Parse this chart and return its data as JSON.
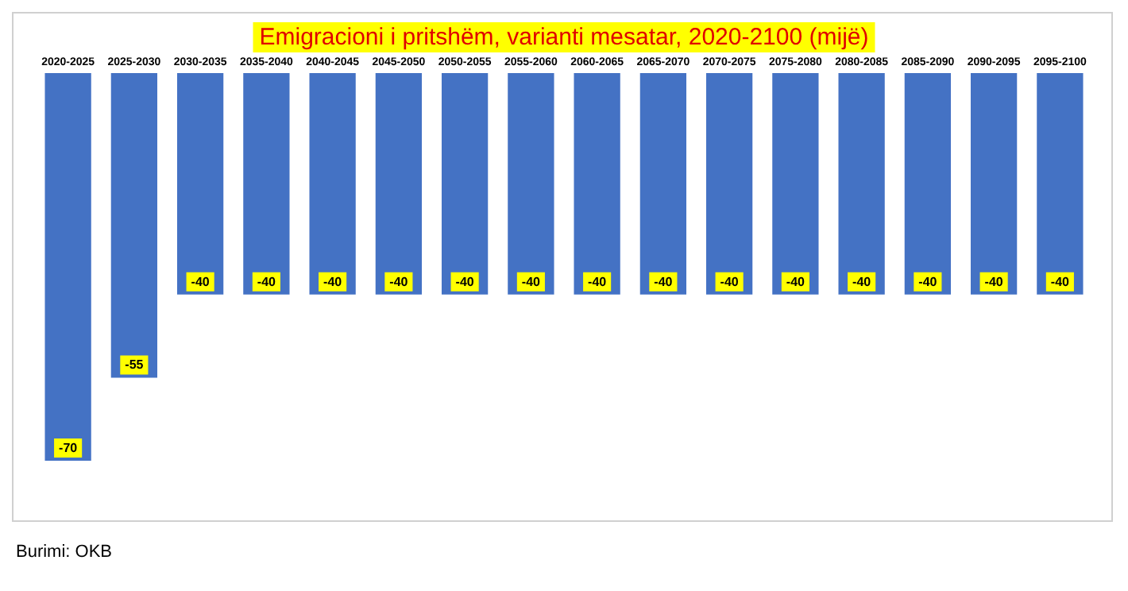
{
  "chart_data": {
    "type": "bar",
    "title": "Emigracioni i pritshëm, varianti mesatar, 2020-2100 (mijë)",
    "categories": [
      "2020-2025",
      "2025-2030",
      "2030-2035",
      "2035-2040",
      "2040-2045",
      "2045-2050",
      "2050-2055",
      "2055-2060",
      "2060-2065",
      "2065-2070",
      "2070-2075",
      "2075-2080",
      "2080-2085",
      "2085-2090",
      "2090-2095",
      "2095-2100"
    ],
    "values": [
      -70,
      -55,
      -40,
      -40,
      -40,
      -40,
      -40,
      -40,
      -40,
      -40,
      -40,
      -40,
      -40,
      -40,
      -40,
      -40
    ],
    "color": "#4472c4",
    "data_labels": true,
    "annotations": [
      "Burimi: OKB"
    ]
  }
}
